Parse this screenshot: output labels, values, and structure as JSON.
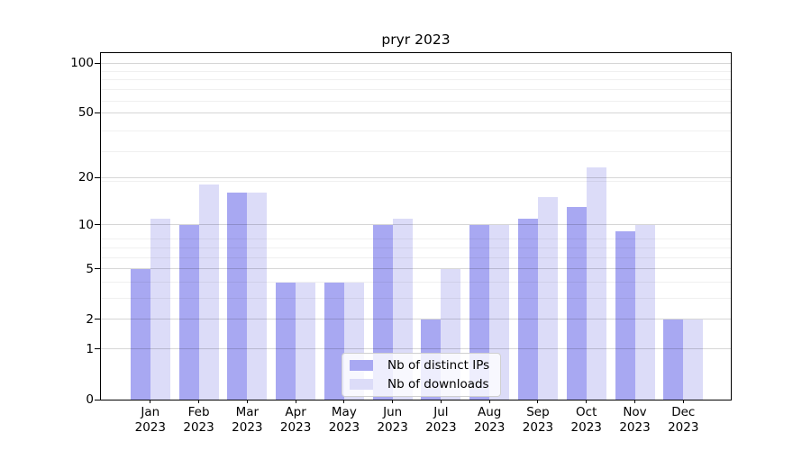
{
  "figure": {
    "background": "#ffffff"
  },
  "chart_data": {
    "type": "bar",
    "title": "pryr 2023",
    "categories": [
      "Jan 2023",
      "Feb 2023",
      "Mar 2023",
      "Apr 2023",
      "May 2023",
      "Jun 2023",
      "Jul 2023",
      "Aug 2023",
      "Sep 2023",
      "Oct 2023",
      "Nov 2023",
      "Dec 2023"
    ],
    "series": [
      {
        "name": "Nb of distinct IPs",
        "color": "#a8a8f2",
        "values": [
          5,
          10,
          16,
          4,
          4,
          10,
          2,
          10,
          11,
          13,
          9,
          2
        ]
      },
      {
        "name": "Nb of downloads",
        "color": "#dcdcf8",
        "values": [
          11,
          18,
          16,
          4,
          4,
          11,
          5,
          10,
          15,
          23,
          10,
          2
        ]
      }
    ],
    "yscale": "log(1+y)",
    "ylim": [
      0,
      116
    ],
    "y_major_ticks": [
      0,
      1,
      2,
      5,
      10,
      20,
      50,
      100
    ],
    "y_minor_ticks": [
      3,
      4,
      6,
      7,
      8,
      19,
      29,
      39,
      59,
      69,
      79,
      89
    ],
    "grid": "horizontal",
    "legend": {
      "position": "lower center",
      "entries": [
        "Nb of distinct IPs",
        "Nb of downloads"
      ]
    }
  },
  "colors": {
    "axis": "#000000",
    "grid_major": "#d2d2d2",
    "grid_minor": "#efefef",
    "legend_border": "#d0d0d0",
    "legend_background": "rgba(255,255,255,0.8)"
  }
}
